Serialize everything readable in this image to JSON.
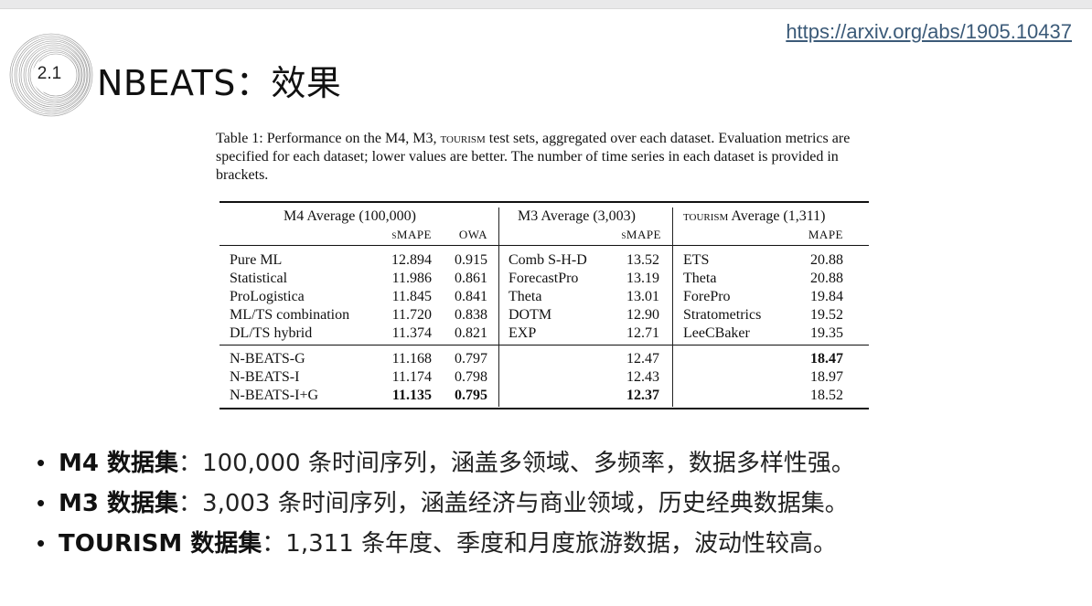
{
  "url": "https://arxiv.org/abs/1905.10437",
  "section_number": "2.1",
  "slide_title": "NBEATS：效果",
  "caption": {
    "lead": "Table 1: Performance on the M4, M3, ",
    "tourism": "tourism",
    "rest": " test sets, aggregated over each dataset. Evaluation metrics are specified for each dataset; lower values are better. The number of time series in each dataset is provided in brackets."
  },
  "table": {
    "m4_header": "M4 Average (100,000)",
    "m4_smape": "sMAPE",
    "m4_owa": "OWA",
    "m3_header": "M3 Average (3,003)",
    "m3_smape": "sMAPE",
    "tourism_word": "tourism",
    "tourism_header_rest": " Average (1,311)",
    "tourism_mape": "MAPE",
    "rows": [
      {
        "m4_name": "Pure ML",
        "m4_smape": "12.894",
        "m4_owa": "0.915",
        "m3_name": "Comb S-H-D",
        "m3_smape": "13.52",
        "t_name": "ETS",
        "t_mape": "20.88"
      },
      {
        "m4_name": "Statistical",
        "m4_smape": "11.986",
        "m4_owa": "0.861",
        "m3_name": "ForecastPro",
        "m3_smape": "13.19",
        "t_name": "Theta",
        "t_mape": "20.88"
      },
      {
        "m4_name": "ProLogistica",
        "m4_smape": "11.845",
        "m4_owa": "0.841",
        "m3_name": "Theta",
        "m3_smape": "13.01",
        "t_name": "ForePro",
        "t_mape": "19.84"
      },
      {
        "m4_name": "ML/TS combination",
        "m4_smape": "11.720",
        "m4_owa": "0.838",
        "m3_name": "DOTM",
        "m3_smape": "12.90",
        "t_name": "Stratometrics",
        "t_mape": "19.52"
      },
      {
        "m4_name": "DL/TS hybrid",
        "m4_smape": "11.374",
        "m4_owa": "0.821",
        "m3_name": "EXP",
        "m3_smape": "12.71",
        "t_name": "LeeCBaker",
        "t_mape": "19.35"
      }
    ],
    "nbeats_rows": [
      {
        "name": "N-BEATS-G",
        "m4_smape": "11.168",
        "m4_owa": "0.797",
        "m3_smape": "12.47",
        "t_mape": "18.47"
      },
      {
        "name": "N-BEATS-I",
        "m4_smape": "11.174",
        "m4_owa": "0.798",
        "m3_smape": "12.43",
        "t_mape": "18.97"
      },
      {
        "name": "N-BEATS-I+G",
        "m4_smape": "11.135",
        "m4_owa": "0.795",
        "m3_smape": "12.37",
        "t_mape": "18.52"
      }
    ]
  },
  "bullets": [
    {
      "label": "M4 数据集",
      "text": "：100,000 条时间序列，涵盖多领域、多频率，数据多样性强。"
    },
    {
      "label": "M3 数据集",
      "text": "：3,003 条时间序列，涵盖经济与商业领域，历史经典数据集。"
    },
    {
      "label": "TOURISM 数据集",
      "text": "：1,311 条年度、季度和月度旅游数据，波动性较高。"
    }
  ]
}
